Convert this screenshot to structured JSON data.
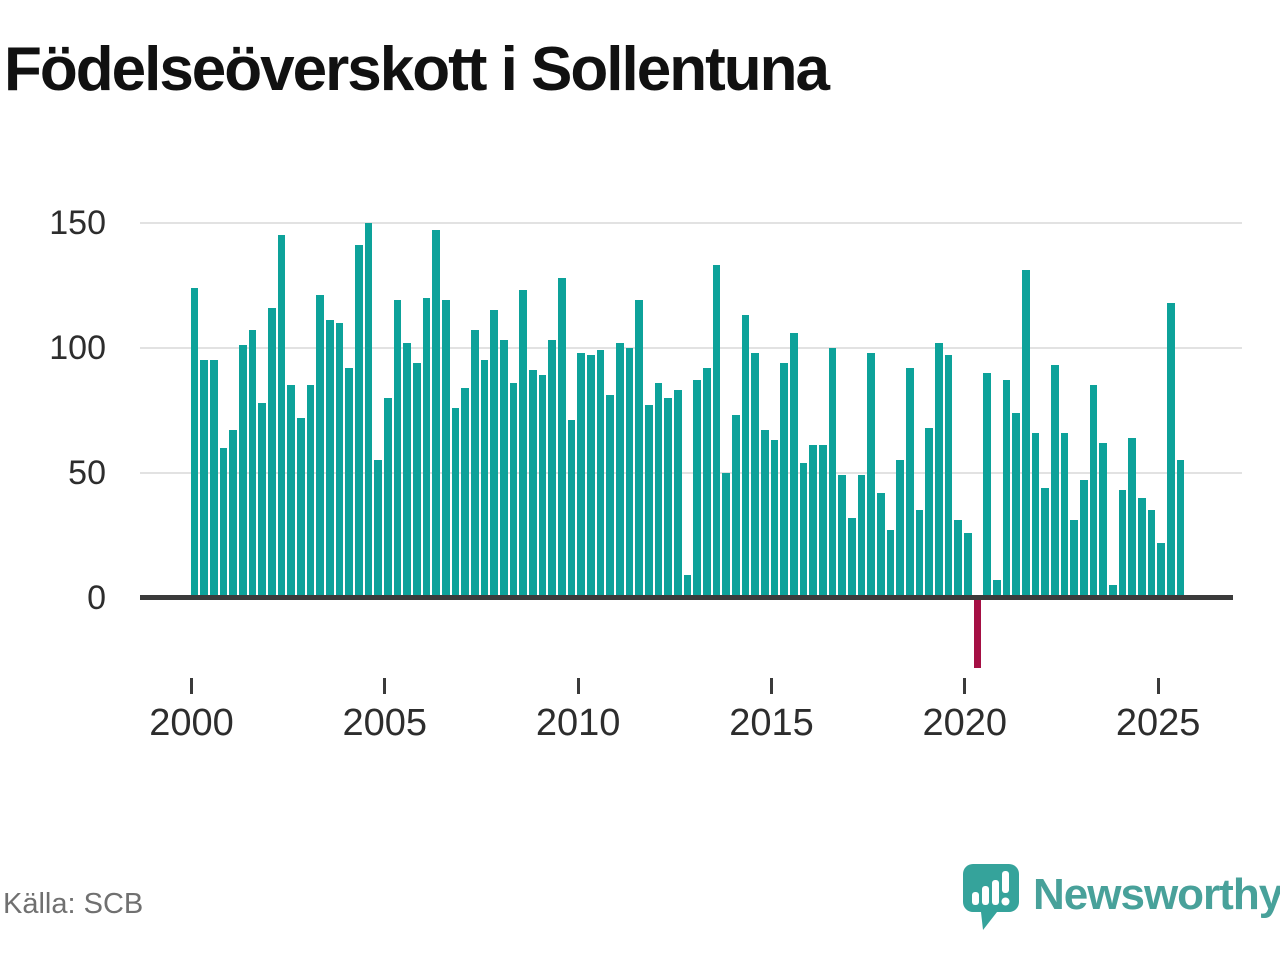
{
  "title": "Födelseöverskott i Sollentuna",
  "source": "Källa: SCB",
  "branding": {
    "logo_text": "Newsworthy",
    "logo_icon": "newsworthy-speech-bubble-bar-chart-icon"
  },
  "colors": {
    "bar": "#0da29a",
    "negative_bar": "#a50f44",
    "axis": "#3b3b3b",
    "gridline": "#e2e2e2",
    "title_text": "#111111",
    "tick_text": "#2d2d2d",
    "source_text": "#707070",
    "logo_teal": "#48a19a"
  },
  "chart_data": {
    "type": "bar",
    "title": "Födelseöverskott i Sollentuna",
    "frequency": "quarterly",
    "xlabel": "",
    "ylabel": "",
    "x_ticks": [
      2000,
      2005,
      2010,
      2015,
      2020,
      2025
    ],
    "y_ticks": [
      0,
      50,
      100,
      150
    ],
    "ylim": [
      -30,
      155
    ],
    "grid": "horizontal",
    "legend": "none",
    "negative_values_highlighted": true,
    "years": [
      {
        "year": 2000,
        "values": [
          124,
          95,
          95,
          60
        ]
      },
      {
        "year": 2001,
        "values": [
          67,
          101,
          107,
          78
        ]
      },
      {
        "year": 2002,
        "values": [
          116,
          145,
          85,
          72
        ]
      },
      {
        "year": 2003,
        "values": [
          85,
          121,
          111,
          110
        ]
      },
      {
        "year": 2004,
        "values": [
          92,
          141,
          150,
          55
        ]
      },
      {
        "year": 2005,
        "values": [
          80,
          119,
          102,
          94
        ]
      },
      {
        "year": 2006,
        "values": [
          120,
          147,
          119,
          76
        ]
      },
      {
        "year": 2007,
        "values": [
          84,
          107,
          95,
          115
        ]
      },
      {
        "year": 2008,
        "values": [
          103,
          86,
          123,
          91
        ]
      },
      {
        "year": 2009,
        "values": [
          89,
          103,
          128,
          71
        ]
      },
      {
        "year": 2010,
        "values": [
          98,
          97,
          99,
          81
        ]
      },
      {
        "year": 2011,
        "values": [
          102,
          100,
          119,
          77
        ]
      },
      {
        "year": 2012,
        "values": [
          86,
          80,
          83,
          9
        ]
      },
      {
        "year": 2013,
        "values": [
          87,
          92,
          133,
          50
        ]
      },
      {
        "year": 2014,
        "values": [
          73,
          113,
          98,
          67
        ]
      },
      {
        "year": 2015,
        "values": [
          63,
          94,
          106,
          54
        ]
      },
      {
        "year": 2016,
        "values": [
          61,
          61,
          100,
          49
        ]
      },
      {
        "year": 2017,
        "values": [
          32,
          49,
          98,
          42
        ]
      },
      {
        "year": 2018,
        "values": [
          27,
          55,
          92,
          35
        ]
      },
      {
        "year": 2019,
        "values": [
          68,
          102,
          97,
          31
        ]
      },
      {
        "year": 2020,
        "values": [
          26,
          -28,
          90,
          7
        ]
      },
      {
        "year": 2021,
        "values": [
          87,
          74,
          131,
          66
        ]
      },
      {
        "year": 2022,
        "values": [
          44,
          93,
          66,
          31
        ]
      },
      {
        "year": 2023,
        "values": [
          47,
          85,
          62,
          5
        ]
      },
      {
        "year": 2024,
        "values": [
          43,
          64,
          40,
          35
        ]
      },
      {
        "year": 2025,
        "values": [
          22,
          118,
          55
        ]
      }
    ]
  }
}
